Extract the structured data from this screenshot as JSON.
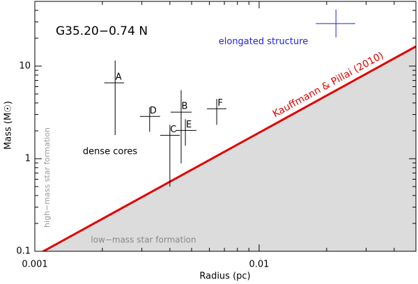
{
  "chart_data": {
    "type": "scatter",
    "title": "G35.20−0.74 N",
    "x_label": "Radius (pc)",
    "y_label": "Mass (M☉)",
    "log_x": true,
    "log_y": true,
    "minor_ticks": true,
    "xlim": [
      0.001,
      0.05
    ],
    "ylim": [
      0.1,
      50
    ],
    "xticks": [
      0.001,
      0.01
    ],
    "yticks": [
      0.1,
      1,
      10
    ],
    "series": [
      {
        "name": "dense cores",
        "color": "#000000",
        "labels": [
          "A",
          "D",
          "B",
          "C",
          "E",
          "F"
        ],
        "x": [
          0.00228,
          0.00325,
          0.00449,
          0.004,
          0.00469,
          0.00647
        ],
        "y": [
          6.6,
          2.86,
          3.18,
          1.79,
          2.02,
          3.46
        ],
        "x_low": [
          0.00204,
          0.00294,
          0.00403,
          0.00362,
          0.00424,
          0.00585
        ],
        "x_high": [
          0.0025,
          0.00362,
          0.005,
          0.00443,
          0.00525,
          0.00714
        ],
        "y_low": [
          1.8,
          1.95,
          0.89,
          0.5,
          1.38,
          2.32
        ],
        "y_high": [
          11.5,
          3.59,
          5.5,
          2.32,
          2.67,
          4.42
        ]
      },
      {
        "name": "elongated structure",
        "color": "#2222dd",
        "x": [
          0.022
        ],
        "y": [
          28.8
        ],
        "x_low": [
          0.0179
        ],
        "x_high": [
          0.0268
        ],
        "y_low": [
          20.4
        ],
        "y_high": [
          40.9
        ]
      }
    ],
    "threshold": {
      "name": "Kauffmann & Pillai (2010)",
      "color": "#e00000",
      "shade": "#dcdcdc",
      "x": [
        0.001,
        0.05
      ],
      "y": [
        0.089,
        16.3
      ]
    },
    "regions": {
      "above": "high−mass star formation",
      "below": "low−mass star formation"
    }
  }
}
